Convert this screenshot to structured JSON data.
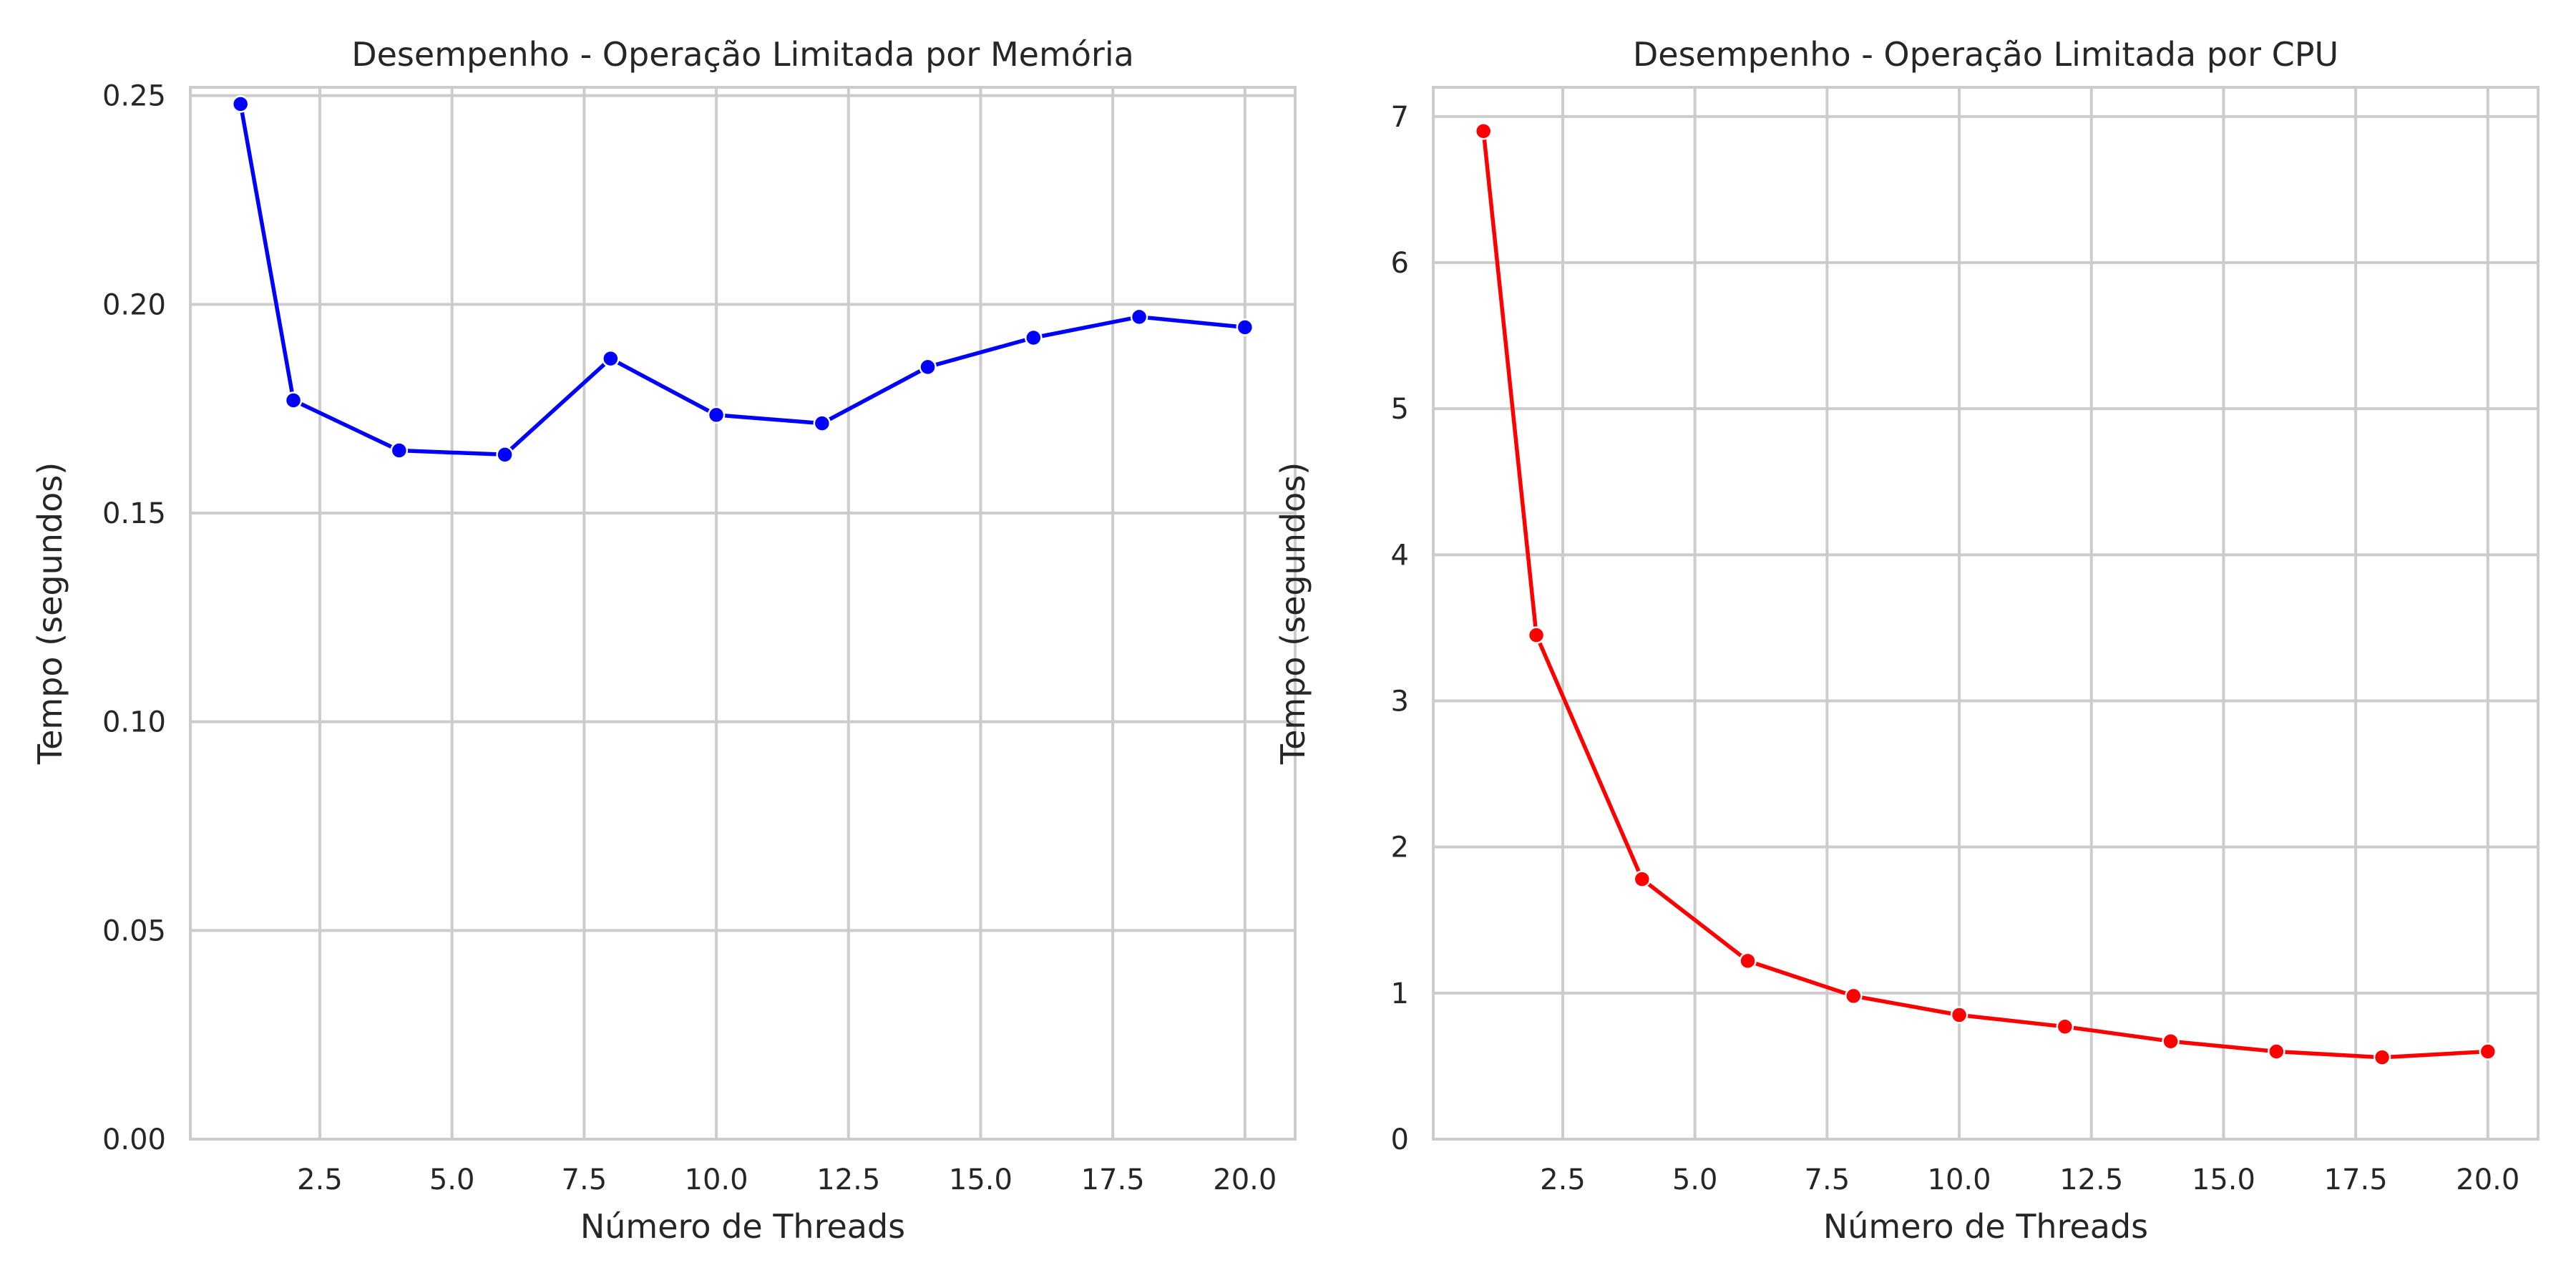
{
  "chart_data": [
    {
      "type": "line",
      "title": "Desempenho - Operação Limitada por Memória",
      "xlabel": "Número de Threads",
      "ylabel": "Tempo (segundos)",
      "xlim": [
        0.05,
        20.95
      ],
      "ylim": [
        0,
        0.252
      ],
      "xticks": [
        2.5,
        5.0,
        7.5,
        10.0,
        12.5,
        15.0,
        17.5,
        20.0
      ],
      "xtick_labels": [
        "2.5",
        "5.0",
        "7.5",
        "10.0",
        "12.5",
        "15.0",
        "17.5",
        "20.0"
      ],
      "yticks": [
        0.0,
        0.05,
        0.1,
        0.15,
        0.2,
        0.25
      ],
      "ytick_labels": [
        "0.00",
        "0.05",
        "0.10",
        "0.15",
        "0.20",
        "0.25"
      ],
      "grid": true,
      "color": "#0000ff",
      "series": [
        {
          "x": [
            1,
            2,
            4,
            6,
            8,
            10,
            12,
            14,
            16,
            18,
            20
          ],
          "y": [
            0.248,
            0.177,
            0.165,
            0.164,
            0.187,
            0.1735,
            0.1715,
            0.185,
            0.192,
            0.197,
            0.1945
          ]
        }
      ]
    },
    {
      "type": "line",
      "title": "Desempenho - Operação Limitada por CPU",
      "xlabel": "Número de Threads",
      "ylabel": "Tempo (segundos)",
      "xlim": [
        0.05,
        20.95
      ],
      "ylim": [
        0,
        7.2
      ],
      "xticks": [
        2.5,
        5.0,
        7.5,
        10.0,
        12.5,
        15.0,
        17.5,
        20.0
      ],
      "xtick_labels": [
        "2.5",
        "5.0",
        "7.5",
        "10.0",
        "12.5",
        "15.0",
        "17.5",
        "20.0"
      ],
      "yticks": [
        0,
        1,
        2,
        3,
        4,
        5,
        6,
        7
      ],
      "ytick_labels": [
        "0",
        "1",
        "2",
        "3",
        "4",
        "5",
        "6",
        "7"
      ],
      "grid": true,
      "color": "#ff0000",
      "series": [
        {
          "x": [
            1,
            2,
            4,
            6,
            8,
            10,
            12,
            14,
            16,
            18,
            20
          ],
          "y": [
            6.9,
            3.45,
            1.78,
            1.22,
            0.98,
            0.85,
            0.77,
            0.67,
            0.6,
            0.56,
            0.6
          ]
        }
      ]
    }
  ]
}
